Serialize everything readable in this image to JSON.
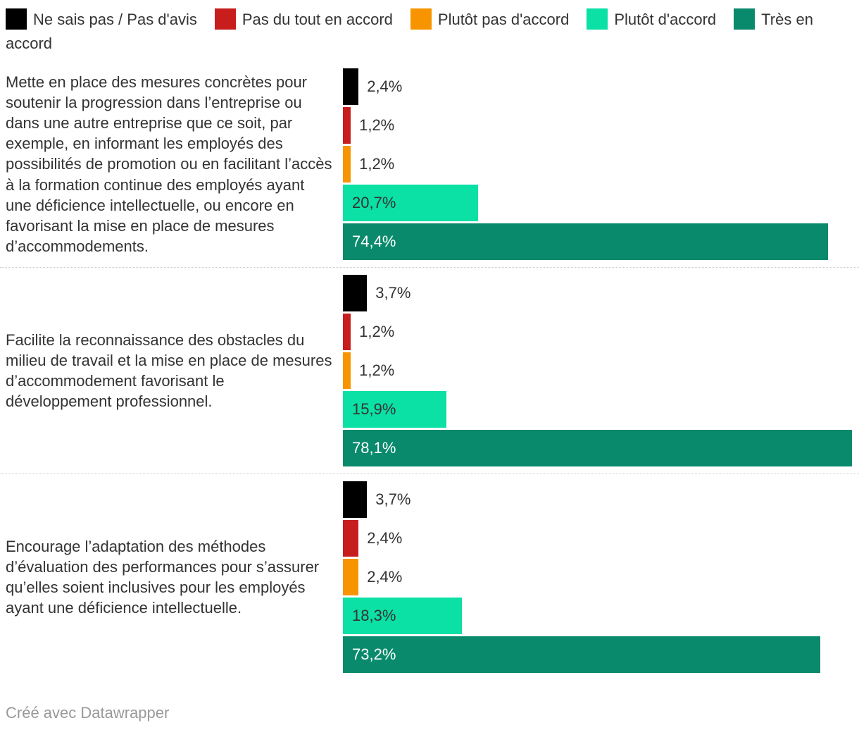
{
  "legend": {
    "items": [
      {
        "label": "Ne sais pas / Pas d'avis",
        "color": "#000000"
      },
      {
        "label": "Pas du tout en accord",
        "color": "#c71e1d"
      },
      {
        "label": "Plutôt pas d'accord",
        "color": "#f79400"
      },
      {
        "label": "Plutôt d'accord",
        "color": "#0be0a5"
      },
      {
        "label": "Très en accord",
        "color": "#098a6c"
      }
    ]
  },
  "chart_data": {
    "type": "bar",
    "orientation": "horizontal",
    "grid": false,
    "legend_position": "top",
    "axis_max": 78.1,
    "categories": [
      "Mette en place des mesures concrètes pour soutenir la progression dans l’entreprise ou dans une autre entreprise que ce soit, par exemple, en informant les employés des possibilités de promotion ou en facilitant l’accès à la formation continue des employés ayant une déficience intellectuelle, ou encore en favorisant la mise en place de mesures d’accommodements.",
      "Facilite la reconnaissance des obstacles du milieu de travail et la mise en place de mesures d’accommodement favorisant le développement professionnel.",
      "Encourage l’adaptation des méthodes d’évaluation des performances pour s’assurer qu’elles soient inclusives pour les employés ayant une déficience intellectuelle."
    ],
    "series": [
      {
        "name": "Ne sais pas / Pas d'avis",
        "color": "#000000",
        "inside_label_color": "#ffffff",
        "values": [
          2.4,
          3.7,
          3.7
        ]
      },
      {
        "name": "Pas du tout en accord",
        "color": "#c71e1d",
        "inside_label_color": "#ffffff",
        "values": [
          1.2,
          1.2,
          2.4
        ]
      },
      {
        "name": "Plutôt pas d'accord",
        "color": "#f79400",
        "inside_label_color": "#333333",
        "values": [
          1.2,
          1.2,
          2.4
        ]
      },
      {
        "name": "Plutôt d'accord",
        "color": "#0be0a5",
        "inside_label_color": "#333333",
        "values": [
          20.7,
          15.9,
          18.3
        ]
      },
      {
        "name": "Très en accord",
        "color": "#098a6c",
        "inside_label_color": "#ffffff",
        "values": [
          74.4,
          78.1,
          73.2
        ]
      }
    ],
    "value_labels": [
      [
        "2,4%",
        "1,2%",
        "1,2%",
        "20,7%",
        "74,4%"
      ],
      [
        "3,7%",
        "1,2%",
        "1,2%",
        "15,9%",
        "78,1%"
      ],
      [
        "3,7%",
        "2,4%",
        "2,4%",
        "18,3%",
        "73,2%"
      ]
    ]
  },
  "footer": {
    "text": "Créé avec Datawrapper"
  }
}
